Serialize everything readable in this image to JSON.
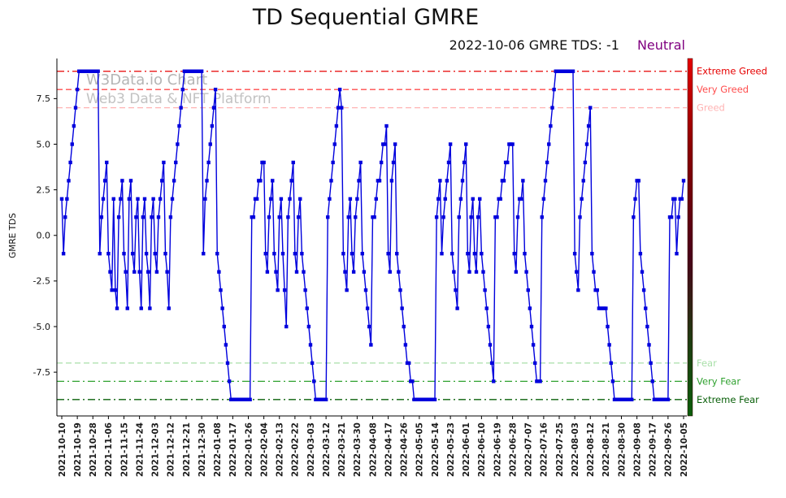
{
  "header": {
    "title": "TD Sequential GMRE",
    "subtitle_left": "2022-10-06 GMRE TDS: -1",
    "subtitle_status": "Neutral",
    "status_color": "#800080"
  },
  "watermark": {
    "line1": "W3Data.io Chart",
    "line2": "Web3 Data & NFT Platform"
  },
  "chart_data": {
    "type": "line",
    "title": "TD Sequential GMRE",
    "xlabel": "",
    "ylabel": "GMRE TDS",
    "start_date": "2021-10-10",
    "end_date": "2022-10-05",
    "x_tick_interval_days": 9,
    "x_tick_labels": [
      "2021-10-10",
      "2021-10-19",
      "2021-10-28",
      "2021-11-06",
      "2021-11-15",
      "2021-11-24",
      "2021-12-03",
      "2021-12-12",
      "2021-12-21",
      "2021-12-30",
      "2022-01-08",
      "2022-01-17",
      "2022-01-26",
      "2022-02-04",
      "2022-02-13",
      "2022-02-22",
      "2022-03-03",
      "2022-03-12",
      "2022-03-21",
      "2022-03-30",
      "2022-04-08",
      "2022-04-17",
      "2022-04-26",
      "2022-05-05",
      "2022-05-14",
      "2022-05-23",
      "2022-06-01",
      "2022-06-10",
      "2022-06-19",
      "2022-06-28",
      "2022-07-07",
      "2022-07-16",
      "2022-07-25",
      "2022-08-03",
      "2022-08-12",
      "2022-08-21",
      "2022-08-30",
      "2022-09-08",
      "2022-09-17",
      "2022-09-26",
      "2022-10-05"
    ],
    "y_ticks": [
      7.5,
      5.0,
      2.5,
      0.0,
      -2.5,
      -5.0,
      -7.5
    ],
    "ylim": [
      -9.9,
      9.7
    ],
    "grid": false,
    "legend": "none",
    "series": [
      {
        "name": "GMRE TDS",
        "color": "#0000dd",
        "marker": "square",
        "values": [
          2,
          -1,
          1,
          2,
          3,
          4,
          5,
          6,
          7,
          8,
          9,
          9,
          9,
          9,
          9,
          9,
          9,
          9,
          9,
          9,
          9,
          9,
          -1,
          1,
          2,
          3,
          4,
          -1,
          -2,
          -3,
          2,
          -3,
          -4,
          1,
          2,
          3,
          -1,
          -2,
          -4,
          2,
          3,
          -1,
          -2,
          1,
          2,
          -2,
          -4,
          1,
          2,
          -1,
          -2,
          -4,
          1,
          2,
          -1,
          -2,
          1,
          2,
          3,
          4,
          -1,
          -2,
          -4,
          1,
          2,
          3,
          4,
          5,
          6,
          7,
          8,
          9,
          9,
          9,
          9,
          9,
          9,
          9,
          9,
          9,
          9,
          9,
          -1,
          2,
          3,
          4,
          5,
          6,
          7,
          8,
          -1,
          -2,
          -3,
          -4,
          -5,
          -6,
          -7,
          -8,
          -9,
          -9,
          -9,
          -9,
          -9,
          -9,
          -9,
          -9,
          -9,
          -9,
          -9,
          -9,
          1,
          1,
          2,
          2,
          3,
          3,
          4,
          4,
          -1,
          -2,
          1,
          2,
          3,
          -1,
          -2,
          -3,
          1,
          2,
          -1,
          -3,
          -5,
          1,
          2,
          3,
          4,
          -1,
          -2,
          1,
          2,
          -1,
          -2,
          -3,
          -4,
          -5,
          -6,
          -7,
          -8,
          -9,
          -9,
          -9,
          -9,
          -9,
          -9,
          -9,
          1,
          2,
          3,
          4,
          5,
          6,
          7,
          8,
          7,
          -1,
          -2,
          -3,
          1,
          2,
          -1,
          -2,
          1,
          2,
          3,
          4,
          -1,
          -2,
          -3,
          -4,
          -5,
          -6,
          1,
          1,
          2,
          3,
          3,
          4,
          5,
          5,
          6,
          -1,
          -2,
          3,
          4,
          5,
          -1,
          -2,
          -3,
          -4,
          -5,
          -6,
          -7,
          -7,
          -8,
          -8,
          -9,
          -9,
          -9,
          -9,
          -9,
          -9,
          -9,
          -9,
          -9,
          -9,
          -9,
          -9,
          -9,
          1,
          2,
          3,
          -1,
          1,
          2,
          3,
          4,
          5,
          -1,
          -2,
          -3,
          -4,
          1,
          2,
          3,
          4,
          5,
          -1,
          -2,
          1,
          2,
          -1,
          -2,
          1,
          2,
          -1,
          -2,
          -3,
          -4,
          -5,
          -6,
          -7,
          -8,
          1,
          1,
          2,
          2,
          3,
          3,
          4,
          4,
          5,
          5,
          5,
          -1,
          -2,
          1,
          2,
          2,
          3,
          -1,
          -2,
          -3,
          -4,
          -5,
          -6,
          -7,
          -8,
          -8,
          -8,
          1,
          2,
          3,
          4,
          5,
          6,
          7,
          8,
          9,
          9,
          9,
          9,
          9,
          9,
          9,
          9,
          9,
          9,
          9,
          -1,
          -2,
          -3,
          1,
          2,
          3,
          4,
          5,
          6,
          7,
          -1,
          -2,
          -3,
          -3,
          -4,
          -4,
          -4,
          -4,
          -4,
          -5,
          -6,
          -7,
          -8,
          -9,
          -9,
          -9,
          -9,
          -9,
          -9,
          -9,
          -9,
          -9,
          -9,
          -9,
          1,
          2,
          3,
          3,
          -1,
          -2,
          -3,
          -4,
          -5,
          -6,
          -7,
          -8,
          -9,
          -9,
          -9,
          -9,
          -9,
          -9,
          -9,
          -9,
          -9,
          1,
          1,
          2,
          2,
          -1,
          1,
          2,
          2,
          3
        ]
      }
    ],
    "thresholds": [
      {
        "label": "Extreme Greed",
        "value": 9,
        "color": "#e60000",
        "style": "dashdot"
      },
      {
        "label": "Very Greed",
        "value": 8,
        "color": "#ff4d4d",
        "style": "dashed"
      },
      {
        "label": "Greed",
        "value": 7,
        "color": "#ffb3b3",
        "style": "dashed"
      },
      {
        "label": "Fear",
        "value": -7,
        "color": "#a8dfa8",
        "style": "dashed"
      },
      {
        "label": "Very Fear",
        "value": -8,
        "color": "#2fa12f",
        "style": "dashdot"
      },
      {
        "label": "Extreme Fear",
        "value": -9,
        "color": "#0a600a",
        "style": "dashdot"
      }
    ],
    "colorbar": {
      "stops": [
        {
          "offset": 0,
          "color": "#e60000"
        },
        {
          "offset": 0.25,
          "color": "#8b0000"
        },
        {
          "offset": 0.55,
          "color": "#4a0018"
        },
        {
          "offset": 0.8,
          "color": "#1c3e10"
        },
        {
          "offset": 1,
          "color": "#0b5e0b"
        }
      ]
    }
  }
}
